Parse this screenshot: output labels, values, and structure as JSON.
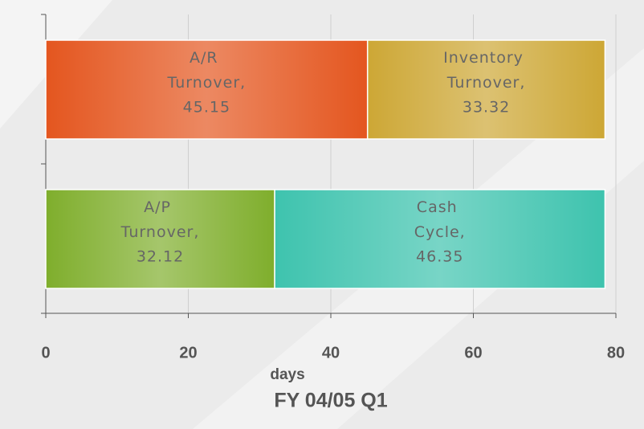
{
  "chart_data": {
    "type": "stacked-barh",
    "title": "FY 04/05 Q1",
    "xlabel": "days",
    "categories": [
      null,
      null
    ],
    "series": [
      {
        "name": "A/R Turnover",
        "label": "A/R Turnover,",
        "color": "#e4561f",
        "values": [
          45.15,
          null
        ]
      },
      {
        "name": "Inventory Turnover",
        "label": "Inventory Turnover,",
        "color": "#cda735",
        "values": [
          33.32,
          null
        ]
      },
      {
        "name": "A/P Turnover",
        "label": "A/P Turnover,",
        "color": "#7fae2c",
        "values": [
          null,
          32.12
        ]
      },
      {
        "name": "Cash Cycle",
        "label": "Cash Cycle,",
        "color": "#3ec3ae",
        "values": [
          null,
          46.35
        ]
      }
    ],
    "xlim": [
      0,
      80
    ],
    "xticks": [
      0,
      20,
      40,
      60,
      80
    ],
    "grid": true
  }
}
